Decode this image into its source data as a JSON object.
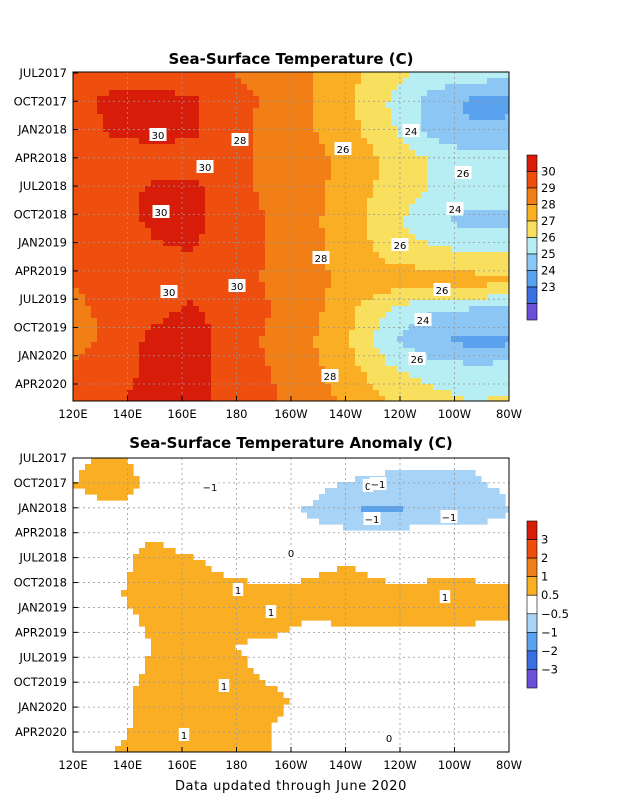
{
  "chart_data": [
    {
      "type": "heatmap",
      "title": "Sea-Surface Temperature (C)",
      "xlabel": "",
      "ylabel": "",
      "x_ticks": [
        "120E",
        "140E",
        "160E",
        "180",
        "160W",
        "140W",
        "120W",
        "100W",
        "80W"
      ],
      "y_ticks": [
        "JUL2017",
        "OCT2017",
        "JAN2018",
        "APR2018",
        "JUL2018",
        "OCT2018",
        "JAN2019",
        "APR2019",
        "JUL2019",
        "OCT2019",
        "JAN2020",
        "APR2020"
      ],
      "colorbar": {
        "levels": [
          "30",
          "29",
          "28",
          "27",
          "26",
          "25",
          "24",
          "23"
        ],
        "colors": [
          "#d81c0a",
          "#ee4f0f",
          "#f27f15",
          "#f9ae23",
          "#f9df5e",
          "#b7eef3",
          "#8cc6f4",
          "#5aa1ee",
          "#3870e0",
          "#6a50d8"
        ]
      },
      "rows": [
        [
          29.2,
          29.5,
          29.5,
          29.2,
          29.0,
          28.6,
          28.0,
          27.3,
          26.4,
          25.8,
          25.6,
          25.4
        ],
        [
          29.6,
          30.3,
          30.4,
          30.2,
          29.4,
          28.8,
          28.0,
          27.1,
          25.9,
          24.6,
          23.8,
          23.8
        ],
        [
          29.4,
          30.1,
          30.3,
          30.2,
          29.3,
          28.7,
          28.1,
          27.3,
          26.2,
          24.8,
          24.1,
          24.2
        ],
        [
          29.0,
          29.4,
          29.5,
          29.4,
          29.2,
          28.8,
          28.4,
          27.7,
          26.8,
          26.0,
          25.6,
          25.6
        ],
        [
          29.1,
          29.6,
          30.2,
          30.4,
          29.3,
          28.8,
          28.3,
          27.5,
          26.6,
          25.9,
          25.7,
          25.7
        ],
        [
          29.3,
          29.7,
          30.1,
          30.3,
          29.5,
          28.9,
          28.2,
          27.4,
          26.3,
          25.3,
          24.6,
          24.5
        ],
        [
          29.2,
          29.5,
          29.9,
          30.0,
          29.4,
          28.9,
          28.3,
          27.5,
          26.6,
          26.2,
          26.0,
          26.1
        ],
        [
          29.0,
          29.4,
          29.6,
          29.6,
          29.3,
          28.9,
          28.3,
          27.7,
          27.6,
          27.6,
          27.4,
          27.2
        ],
        [
          28.8,
          29.2,
          29.7,
          30.2,
          29.5,
          29.0,
          28.3,
          27.2,
          25.8,
          25.0,
          24.8,
          24.8
        ],
        [
          28.7,
          29.2,
          30.3,
          30.5,
          29.5,
          28.8,
          28.1,
          27.0,
          25.2,
          24.2,
          23.7,
          23.8
        ],
        [
          29.2,
          29.6,
          30.2,
          30.3,
          29.6,
          29.0,
          28.3,
          27.3,
          26.2,
          25.6,
          25.4,
          25.5
        ],
        [
          29.4,
          29.8,
          30.5,
          30.4,
          29.6,
          29.1,
          28.5,
          27.8,
          27.0,
          26.4,
          26.0,
          26.1
        ]
      ],
      "contour_labels": [
        "30",
        "28",
        "26",
        "24",
        "30",
        "26",
        "30",
        "24",
        "26",
        "28",
        "30",
        "30",
        "26",
        "24",
        "26",
        "28"
      ]
    },
    {
      "type": "heatmap",
      "title": "Sea-Surface Temperature Anomaly (C)",
      "xlabel": "",
      "ylabel": "",
      "x_ticks": [
        "120E",
        "140E",
        "160E",
        "180",
        "160W",
        "140W",
        "120W",
        "100W",
        "80W"
      ],
      "y_ticks": [
        "JUL2017",
        "OCT2017",
        "JAN2018",
        "APR2018",
        "JUL2018",
        "OCT2018",
        "JAN2019",
        "APR2019",
        "JUL2019",
        "OCT2019",
        "JAN2020",
        "APR2020"
      ],
      "colorbar": {
        "levels": [
          "3",
          "2",
          "1",
          "0.5",
          "−0.5",
          "−1",
          "−2",
          "−3"
        ],
        "colors": [
          "#d81c0a",
          "#ee4f0f",
          "#f27f15",
          "#f9ae23",
          "#ffffff",
          "#a6d3f6",
          "#5aa1ee",
          "#3870e0",
          "#6a50d8"
        ]
      },
      "rows": [
        [
          0.4,
          0.6,
          0.3,
          0.2,
          0.1,
          0.0,
          0.0,
          0.0,
          -0.2,
          -0.3,
          -0.4,
          -0.3
        ],
        [
          0.5,
          0.7,
          0.4,
          0.2,
          0.1,
          -0.1,
          -0.3,
          -0.6,
          -0.8,
          -0.7,
          -0.6,
          -0.4
        ],
        [
          0.3,
          0.4,
          0.3,
          0.1,
          0.0,
          -0.2,
          -0.6,
          -1.0,
          -1.1,
          -0.9,
          -1.0,
          -0.5
        ],
        [
          0.2,
          0.3,
          0.5,
          0.3,
          0.1,
          0.0,
          -0.1,
          -0.2,
          -0.2,
          -0.1,
          -0.1,
          0.0
        ],
        [
          0.2,
          0.3,
          0.7,
          0.6,
          0.3,
          0.2,
          0.4,
          0.5,
          0.3,
          0.2,
          0.1,
          0.1
        ],
        [
          0.3,
          0.4,
          0.8,
          0.8,
          0.7,
          0.6,
          0.6,
          0.7,
          0.6,
          0.7,
          0.8,
          0.6
        ],
        [
          0.2,
          0.3,
          0.6,
          0.9,
          0.8,
          0.7,
          0.5,
          0.6,
          0.7,
          0.6,
          0.6,
          0.5
        ],
        [
          0.1,
          0.2,
          0.5,
          0.6,
          0.5,
          0.4,
          0.3,
          0.2,
          0.2,
          0.1,
          0.1,
          0.0
        ],
        [
          0.1,
          0.2,
          0.6,
          0.8,
          0.6,
          0.4,
          0.2,
          0.1,
          0.0,
          0.0,
          0.0,
          0.1
        ],
        [
          -0.1,
          0.2,
          0.8,
          1.0,
          0.8,
          0.6,
          0.4,
          0.2,
          0.1,
          0.1,
          0.2,
          0.1
        ],
        [
          0.2,
          0.3,
          0.7,
          0.8,
          0.7,
          0.5,
          0.3,
          0.2,
          0.1,
          0.2,
          0.2,
          0.1
        ],
        [
          0.4,
          0.5,
          0.8,
          0.7,
          0.6,
          0.5,
          0.4,
          0.3,
          0.2,
          0.3,
          0.3,
          0.2
        ]
      ],
      "contour_labels": [
        "0",
        "−1",
        "−1",
        "−1",
        "−1",
        "0",
        "1",
        "1",
        "1",
        "1",
        "1",
        "0"
      ]
    }
  ],
  "footer": "Data updated through June 2020"
}
